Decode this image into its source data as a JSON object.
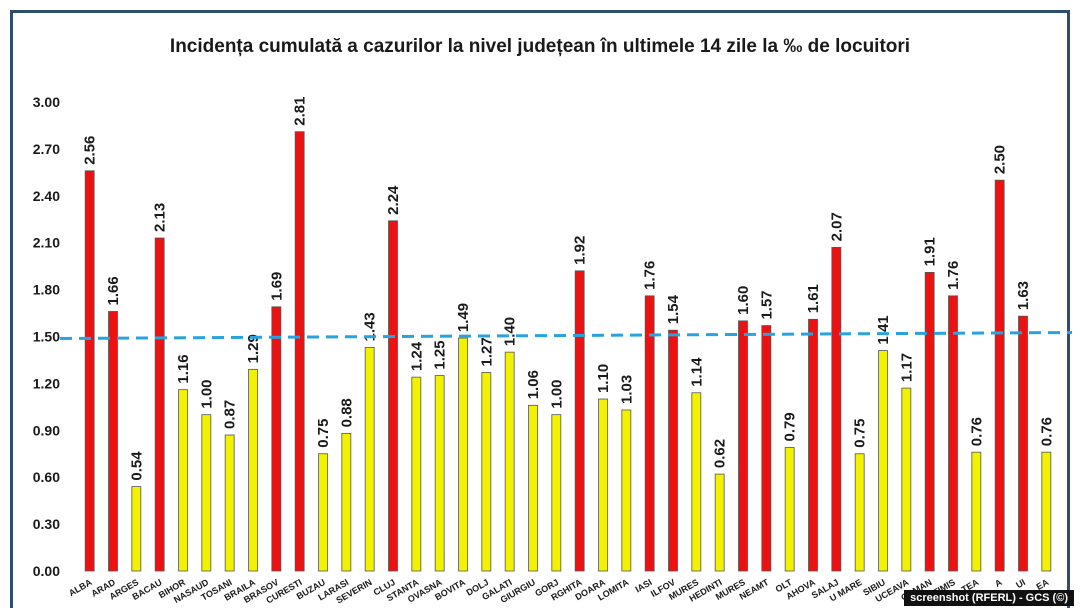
{
  "chart_data": {
    "type": "bar",
    "title": "Incidența cumulată a cazurilor la nivel județean în ultimele 14 zile la ‰ de locuitori",
    "categories": [
      "ALBA",
      "ARAD",
      "ARGES",
      "BACAU",
      "BIHOR",
      "BISTRITA-NASAUD",
      "BOTOSANI",
      "BRAILA",
      "BRASOV",
      "BUCURESTI",
      "BUZAU",
      "CALARASI",
      "CARAS-SEVERIN",
      "CLUJ",
      "CONSTANTA",
      "COVASNA",
      "DAMBOVITA",
      "DOLJ",
      "GALATI",
      "GIURGIU",
      "GORJ",
      "HARGHITA",
      "HUNEDOARA",
      "IALOMITA",
      "IASI",
      "ILFOV",
      "MARAMURES",
      "MEHEDINTI",
      "MURES",
      "NEAMT",
      "OLT",
      "PRAHOVA",
      "SALAJ",
      "SATU MARE",
      "SIBIU",
      "SUCEAVA",
      "TELEORMAN",
      "TIMIS",
      "TULCEA",
      "VASLUI",
      "VALCEA",
      "VRANCEA"
    ],
    "tick_labels": [
      "ALBA",
      "ARAD",
      "ARGES",
      "BACAU",
      "BIHOR",
      "NASAUD",
      "TOSANI",
      "BRAILA",
      "BRASOV",
      "CURESTI",
      "BUZAU",
      "LARASI",
      "SEVERIN",
      "CLUJ",
      "STANTA",
      "OVASNA",
      "BOVITA",
      "DOLJ",
      "GALATI",
      "GIURGIU",
      "GORJ",
      "RGHITA",
      "DOARA",
      "LOMITA",
      "IASI",
      "ILFOV",
      "MURES",
      "HEDINTI",
      "MURES",
      "NEAMT",
      "OLT",
      "AHOVA",
      "SALAJ",
      "U MARE",
      "SIBIU",
      "UCEAVA",
      "ORMAN",
      "TIMIS",
      "TEA",
      "A",
      "UI",
      "EA"
    ],
    "values": [
      2.56,
      1.66,
      0.54,
      2.13,
      1.16,
      1.0,
      0.87,
      1.29,
      1.69,
      2.81,
      0.75,
      0.88,
      1.43,
      2.24,
      1.24,
      1.25,
      1.49,
      1.27,
      1.4,
      1.06,
      1.0,
      1.92,
      1.1,
      1.03,
      1.76,
      1.54,
      1.14,
      0.62,
      1.6,
      1.57,
      0.79,
      1.61,
      2.07,
      0.75,
      1.41,
      1.17,
      1.91,
      1.76,
      0.76,
      2.5,
      1.63,
      0.76
    ],
    "data_labels": [
      "2.56",
      "1.66",
      "0.54",
      "2.13",
      "1.16",
      "1.00",
      "0.87",
      "1.29",
      "1.69",
      "2.81",
      "0.75",
      "0.88",
      "1.43",
      "2.24",
      "1.24",
      "1.25",
      "1.49",
      "1.27",
      "1.40",
      "1.06",
      "1.00",
      "1.92",
      "1.10",
      "1.03",
      "1.76",
      "1.54",
      "1.14",
      "0.62",
      "1.60",
      "1.57",
      "0.79",
      "1.61",
      "2.07",
      "0.75",
      "1.41",
      "1.17",
      "1.91",
      "1.76",
      "0.76",
      "2.50",
      "1.63",
      "0.76"
    ],
    "ylim": [
      0,
      3.0
    ],
    "yticks": [
      "0.00",
      "0.30",
      "0.60",
      "0.90",
      "1.20",
      "1.50",
      "1.80",
      "2.10",
      "2.40",
      "2.70",
      "3.00"
    ],
    "threshold": 1.5,
    "colors": {
      "above_threshold": "#ee1111",
      "below_threshold": "#f2f200",
      "bar_stroke": "#555555",
      "threshold_line": "#29a3e0"
    },
    "grid": false,
    "legend": "none"
  },
  "credit": "screenshot (RFERL) - GCS (©)"
}
